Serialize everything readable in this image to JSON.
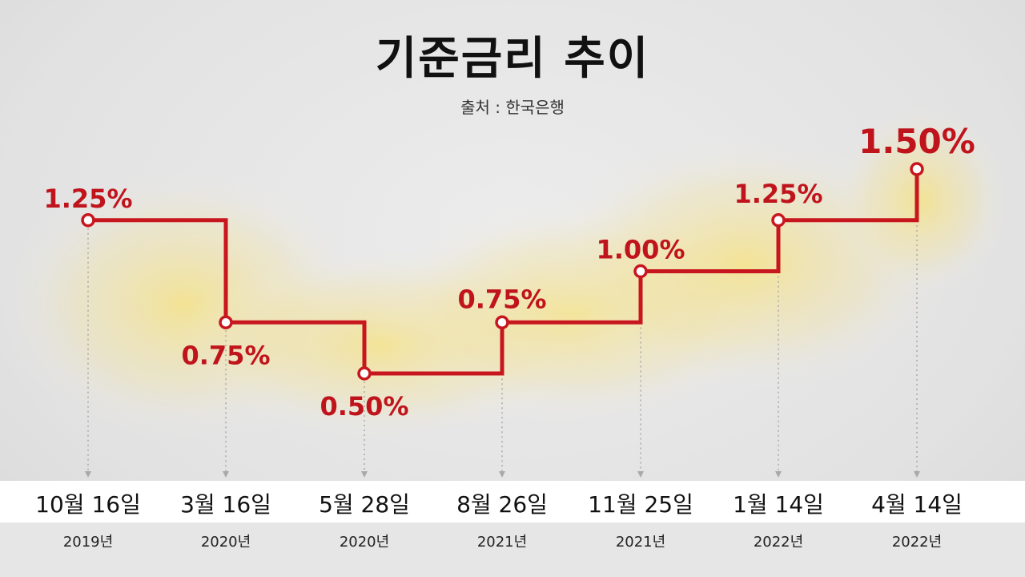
{
  "title": "기준금리 추이",
  "source": "출처 : 한국은행",
  "colors": {
    "line": "#c8161e",
    "label": "#c0141c",
    "glow": "#f5e27a"
  },
  "chart_data": {
    "type": "line",
    "title": "기준금리 추이",
    "step": true,
    "categories": [
      "10월 16일",
      "3월 16일",
      "5월 28일",
      "8월 26일",
      "11월 25일",
      "1월 14일",
      "4월 14일"
    ],
    "years": [
      "2019년",
      "2020년",
      "2020년",
      "2021년",
      "2021년",
      "2022년",
      "2022년"
    ],
    "values": [
      1.25,
      0.75,
      0.5,
      0.75,
      1.0,
      1.25,
      1.5
    ],
    "value_labels": [
      "1.25%",
      "0.75%",
      "0.50%",
      "0.75%",
      "1.00%",
      "1.25%",
      "1.50%"
    ],
    "grid": false
  }
}
